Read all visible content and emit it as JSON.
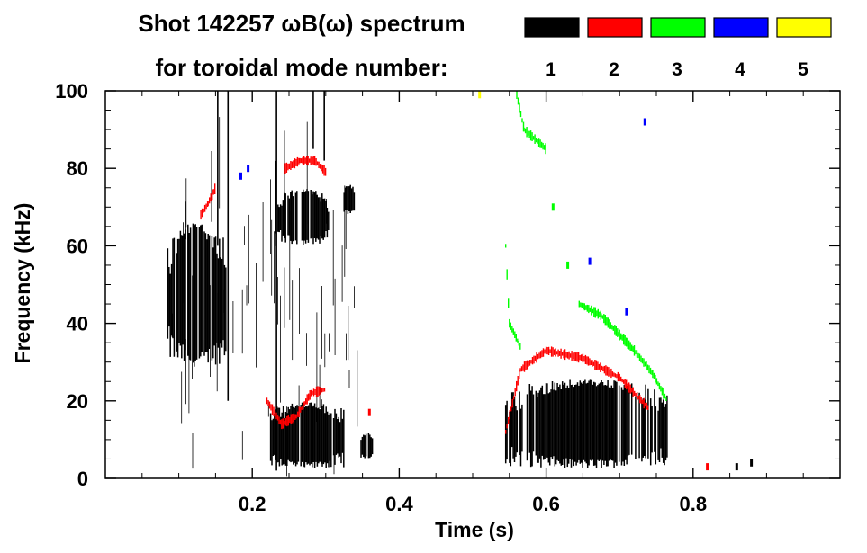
{
  "chart_data": {
    "type": "heatmap",
    "title_line1": "Shot 142257 ωB(ω) spectrum",
    "title_line2": "for toroidal mode number:",
    "xlabel": "Time (s)",
    "ylabel": "Frequency (kHz)",
    "xlim": [
      0.0,
      1.0
    ],
    "ylim": [
      0,
      100
    ],
    "x_ticks": [
      0.2,
      0.4,
      0.6,
      0.8
    ],
    "x_tick_labels": [
      "0.2",
      "0.4",
      "0.6",
      "0.8"
    ],
    "y_ticks": [
      0,
      20,
      40,
      60,
      80,
      100
    ],
    "y_tick_labels": [
      "0",
      "20",
      "40",
      "60",
      "80",
      "100"
    ],
    "legend": [
      {
        "label": "1",
        "color": "#000000"
      },
      {
        "label": "2",
        "color": "#ff0000"
      },
      {
        "label": "3",
        "color": "#00ff00"
      },
      {
        "label": "4",
        "color": "#0000ff"
      },
      {
        "label": "5",
        "color": "#ffff00"
      }
    ],
    "regions": [
      {
        "mode": 1,
        "t0": 0.085,
        "t1": 0.165,
        "f0": 28,
        "f1": 67
      },
      {
        "mode": 1,
        "t0": 0.225,
        "t1": 0.325,
        "f0": 2,
        "f1": 20
      },
      {
        "mode": 1,
        "t0": 0.235,
        "t1": 0.305,
        "f0": 60,
        "f1": 75
      },
      {
        "mode": 1,
        "t0": 0.545,
        "t1": 0.765,
        "f0": 2,
        "f1": 26
      },
      {
        "mode": 1,
        "t0": 0.325,
        "t1": 0.34,
        "f0": 68,
        "f1": 76
      },
      {
        "mode": 1,
        "t0": 0.348,
        "t1": 0.365,
        "f0": 5,
        "f1": 12
      }
    ],
    "tracks": [
      {
        "mode": 2,
        "points": [
          [
            0.13,
            68
          ],
          [
            0.14,
            71
          ],
          [
            0.15,
            75
          ]
        ]
      },
      {
        "mode": 2,
        "points": [
          [
            0.245,
            80
          ],
          [
            0.265,
            82
          ],
          [
            0.285,
            82
          ],
          [
            0.3,
            79
          ]
        ]
      },
      {
        "mode": 2,
        "points": [
          [
            0.22,
            20
          ],
          [
            0.24,
            14
          ],
          [
            0.26,
            16
          ],
          [
            0.28,
            22
          ],
          [
            0.3,
            23
          ]
        ]
      },
      {
        "mode": 2,
        "points": [
          [
            0.545,
            12
          ],
          [
            0.565,
            28
          ],
          [
            0.6,
            33
          ],
          [
            0.65,
            31
          ],
          [
            0.7,
            26
          ],
          [
            0.74,
            18
          ]
        ]
      },
      {
        "mode": 3,
        "points": [
          [
            0.545,
            60
          ],
          [
            0.55,
            40
          ],
          [
            0.565,
            34
          ]
        ]
      },
      {
        "mode": 3,
        "points": [
          [
            0.645,
            45
          ],
          [
            0.675,
            42
          ],
          [
            0.7,
            37
          ],
          [
            0.72,
            33
          ],
          [
            0.745,
            27
          ],
          [
            0.765,
            20
          ]
        ]
      },
      {
        "mode": 3,
        "points": [
          [
            0.56,
            99
          ],
          [
            0.57,
            90
          ],
          [
            0.6,
            85
          ]
        ]
      }
    ],
    "spikes": [
      {
        "mode": 1,
        "t": 0.153,
        "f0": 60,
        "f1": 100
      },
      {
        "mode": 1,
        "t": 0.167,
        "f0": 20,
        "f1": 100
      },
      {
        "mode": 1,
        "t": 0.233,
        "f0": 2,
        "f1": 100
      },
      {
        "mode": 1,
        "t": 0.283,
        "f0": 85,
        "f1": 100
      },
      {
        "mode": 1,
        "t": 0.298,
        "f0": 82,
        "f1": 100
      }
    ],
    "specks": [
      {
        "mode": 4,
        "t": 0.185,
        "f": 78
      },
      {
        "mode": 4,
        "t": 0.195,
        "f": 80
      },
      {
        "mode": 4,
        "t": 0.66,
        "f": 56
      },
      {
        "mode": 4,
        "t": 0.735,
        "f": 92
      },
      {
        "mode": 4,
        "t": 0.71,
        "f": 43
      },
      {
        "mode": 5,
        "t": 0.51,
        "f": 99
      },
      {
        "mode": 3,
        "t": 0.61,
        "f": 70
      },
      {
        "mode": 3,
        "t": 0.63,
        "f": 55
      },
      {
        "mode": 2,
        "t": 0.36,
        "f": 17
      },
      {
        "mode": 2,
        "t": 0.82,
        "f": 3
      },
      {
        "mode": 1,
        "t": 0.86,
        "f": 3
      },
      {
        "mode": 1,
        "t": 0.88,
        "f": 4
      }
    ]
  }
}
